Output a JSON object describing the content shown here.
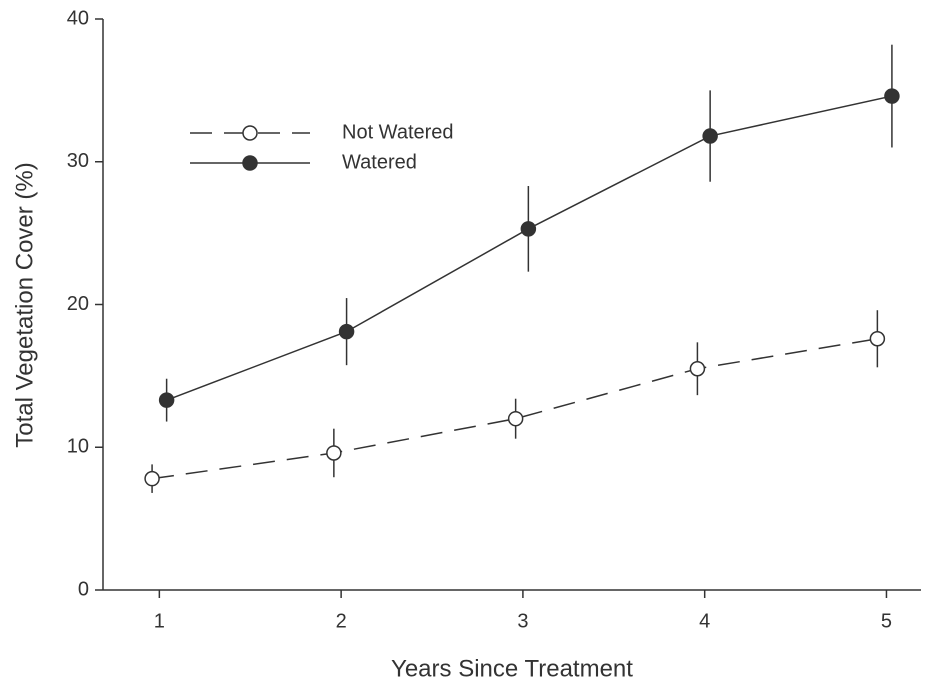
{
  "chart_data": {
    "type": "line",
    "xlabel": "Years Since Treatment",
    "ylabel": "Total Vegetation Cover (%)",
    "xlim": [
      0.69,
      5.19
    ],
    "xticks": [
      1,
      2,
      3,
      4,
      5
    ],
    "ylim": [
      0,
      40
    ],
    "yticks": [
      0,
      10,
      20,
      30,
      40
    ],
    "legend": "upper left",
    "series": [
      {
        "name": "Not Watered",
        "color": "#333333",
        "linestyle": "dashed",
        "marker": "open",
        "x": [
          0.96,
          1.96,
          2.96,
          3.96,
          4.95
        ],
        "values": [
          7.8,
          9.6,
          12.0,
          15.5,
          17.6
        ],
        "errors": [
          1.0,
          1.7,
          1.4,
          1.85,
          2.0
        ]
      },
      {
        "name": "Watered",
        "color": "#333333",
        "linestyle": "solid",
        "marker": "filled",
        "x": [
          1.04,
          2.03,
          3.03,
          4.03,
          5.03
        ],
        "values": [
          13.3,
          18.1,
          25.3,
          31.8,
          34.6
        ],
        "errors": [
          1.5,
          2.35,
          3.0,
          3.2,
          3.6
        ]
      }
    ]
  }
}
